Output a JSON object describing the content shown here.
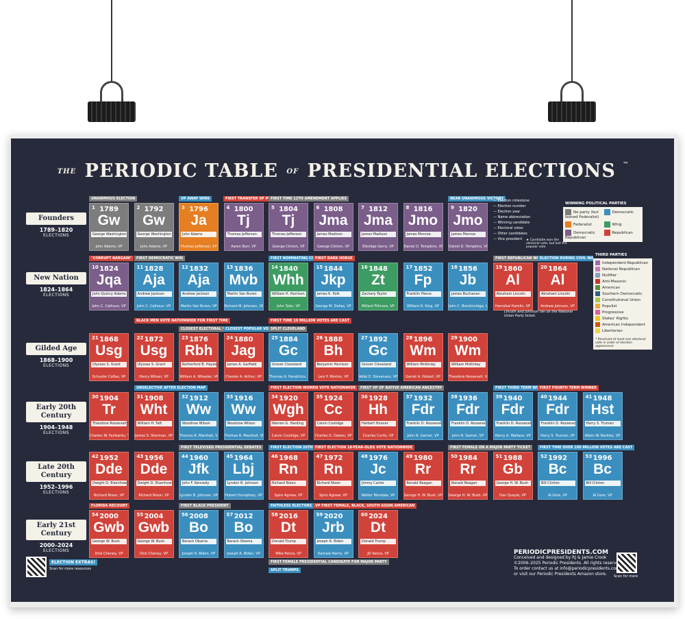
{
  "title": {
    "the": "THE",
    "main1": "PERIODIC TABLE",
    "of": "OF",
    "main2": "PRESIDENTIAL ELECTIONS",
    "tm": "™"
  },
  "colors": {
    "background": "#262a3b",
    "no_party": "#7d7d7d",
    "federalist": "#e67e22",
    "dem_rep": "#7b5e8a",
    "whig": "#3d9c62",
    "democratic": "#3b8fbf",
    "republican": "#d1433a"
  },
  "eras": [
    {
      "name": "Founders",
      "years": "1789–1820",
      "label": "ELECTIONS"
    },
    {
      "name": "New Nation",
      "years": "1824–1864",
      "label": "ELECTIONS"
    },
    {
      "name": "Gilded Age",
      "years": "1868–1900",
      "label": "ELECTIONS"
    },
    {
      "name": "Early 20th Century",
      "years": "1904–1948",
      "label": "ELECTIONS"
    },
    {
      "name": "Late 20th Century",
      "years": "1952–1996",
      "label": "ELECTIONS"
    },
    {
      "name": "Early 21st Century",
      "years": "2000–2024",
      "label": "ELECTIONS"
    }
  ],
  "elections": [
    {
      "n": "1",
      "yr": "1789",
      "ab": "Gw",
      "winner": "George Washington",
      "vp": "John Adams, VP",
      "party": "no_party"
    },
    {
      "n": "2",
      "yr": "1792",
      "ab": "Gw",
      "winner": "George Washington",
      "vp": "John Adams, VP",
      "party": "no_party"
    },
    {
      "n": "3",
      "yr": "1796",
      "ab": "Ja",
      "winner": "John Adams",
      "vp": "Thomas Jefferson, VP",
      "party": "federalist"
    },
    {
      "n": "4",
      "yr": "1800",
      "ab": "Tj",
      "winner": "Thomas Jefferson",
      "vp": "Aaron Burr, VP",
      "party": "dem_rep"
    },
    {
      "n": "5",
      "yr": "1804",
      "ab": "Tj",
      "winner": "Thomas Jefferson",
      "vp": "George Clinton, VP",
      "party": "dem_rep"
    },
    {
      "n": "6",
      "yr": "1808",
      "ab": "Jma",
      "winner": "James Madison",
      "vp": "George Clinton, VP",
      "party": "dem_rep"
    },
    {
      "n": "7",
      "yr": "1812",
      "ab": "Jma",
      "winner": "James Madison",
      "vp": "Elbridge Gerry, VP",
      "party": "dem_rep"
    },
    {
      "n": "8",
      "yr": "1816",
      "ab": "Jmo",
      "winner": "James Monroe",
      "vp": "Daniel D. Tompkins, VP",
      "party": "dem_rep"
    },
    {
      "n": "9",
      "yr": "1820",
      "ab": "Jmo",
      "winner": "James Monroe",
      "vp": "Daniel D. Tompkins, VP",
      "party": "dem_rep"
    },
    {
      "n": "10",
      "yr": "1824",
      "ab": "Jqa",
      "winner": "John Quincy Adams",
      "vp": "John C. Calhoun, VP",
      "party": "dem_rep"
    },
    {
      "n": "11",
      "yr": "1828",
      "ab": "Aja",
      "winner": "Andrew Jackson",
      "vp": "John C. Calhoun, VP",
      "party": "democratic"
    },
    {
      "n": "12",
      "yr": "1832",
      "ab": "Aja",
      "winner": "Andrew Jackson",
      "vp": "Martin Van Buren, VP",
      "party": "democratic"
    },
    {
      "n": "13",
      "yr": "1836",
      "ab": "Mvb",
      "winner": "Martin Van Buren",
      "vp": "Richard M. Johnson, VP",
      "party": "democratic"
    },
    {
      "n": "14",
      "yr": "1840",
      "ab": "Whh",
      "winner": "William H. Harrison",
      "vp": "John Tyler, VP",
      "party": "whig"
    },
    {
      "n": "15",
      "yr": "1844",
      "ab": "Jkp",
      "winner": "James K. Polk",
      "vp": "George M. Dallas, VP",
      "party": "democratic"
    },
    {
      "n": "16",
      "yr": "1848",
      "ab": "Zt",
      "winner": "Zachary Taylor",
      "vp": "Millard Fillmore, VP",
      "party": "whig"
    },
    {
      "n": "17",
      "yr": "1852",
      "ab": "Fp",
      "winner": "Franklin Pierce",
      "vp": "William R. King, VP",
      "party": "democratic"
    },
    {
      "n": "18",
      "yr": "1856",
      "ab": "Jb",
      "winner": "James Buchanan",
      "vp": "John C. Breckinridge, VP",
      "party": "democratic"
    },
    {
      "n": "19",
      "yr": "1860",
      "ab": "Al",
      "winner": "Abraham Lincoln",
      "vp": "Hannibal Hamlin, VP",
      "party": "republican"
    },
    {
      "n": "20",
      "yr": "1864",
      "ab": "Al",
      "winner": "Abraham Lincoln",
      "vp": "Andrew Johnson, VP",
      "party": "republican"
    },
    {
      "n": "21",
      "yr": "1868",
      "ab": "Usg",
      "winner": "Ulysses S. Grant",
      "vp": "Schuyler Colfax, VP",
      "party": "republican"
    },
    {
      "n": "22",
      "yr": "1872",
      "ab": "Usg",
      "winner": "Ulysses S. Grant",
      "vp": "Henry Wilson, VP",
      "party": "republican"
    },
    {
      "n": "23",
      "yr": "1876",
      "ab": "Rbh",
      "winner": "Rutherford B. Hayes",
      "vp": "William A. Wheeler, VP",
      "party": "republican"
    },
    {
      "n": "24",
      "yr": "1880",
      "ab": "Jag",
      "winner": "James A. Garfield",
      "vp": "Chester A. Arthur, VP",
      "party": "republican"
    },
    {
      "n": "25",
      "yr": "1884",
      "ab": "Gc",
      "winner": "Grover Cleveland",
      "vp": "Thomas A. Hendricks, VP",
      "party": "democratic"
    },
    {
      "n": "26",
      "yr": "1888",
      "ab": "Bh",
      "winner": "Benjamin Harrison",
      "vp": "Levi P. Morton, VP",
      "party": "republican"
    },
    {
      "n": "27",
      "yr": "1892",
      "ab": "Gc",
      "winner": "Grover Cleveland",
      "vp": "Adlai E. Stevenson, VP",
      "party": "democratic"
    },
    {
      "n": "28",
      "yr": "1896",
      "ab": "Wm",
      "winner": "William McKinley",
      "vp": "Garret A. Hobart, VP",
      "party": "republican"
    },
    {
      "n": "29",
      "yr": "1900",
      "ab": "Wm",
      "winner": "William McKinley",
      "vp": "Theodore Roosevelt, VP",
      "party": "republican"
    },
    {
      "n": "30",
      "yr": "1904",
      "ab": "Tr",
      "winner": "Theodore Roosevelt",
      "vp": "Charles W. Fairbanks, VP",
      "party": "republican"
    },
    {
      "n": "31",
      "yr": "1908",
      "ab": "Wht",
      "winner": "William H. Taft",
      "vp": "James S. Sherman, VP",
      "party": "republican"
    },
    {
      "n": "32",
      "yr": "1912",
      "ab": "Ww",
      "winner": "Woodrow Wilson",
      "vp": "Thomas R. Marshall, VP",
      "party": "democratic"
    },
    {
      "n": "33",
      "yr": "1916",
      "ab": "Ww",
      "winner": "Woodrow Wilson",
      "vp": "Thomas R. Marshall, VP",
      "party": "democratic"
    },
    {
      "n": "34",
      "yr": "1920",
      "ab": "Wgh",
      "winner": "Warren G. Harding",
      "vp": "Calvin Coolidge, VP",
      "party": "republican"
    },
    {
      "n": "35",
      "yr": "1924",
      "ab": "Cc",
      "winner": "Calvin Coolidge",
      "vp": "Charles G. Dawes, VP",
      "party": "republican"
    },
    {
      "n": "36",
      "yr": "1928",
      "ab": "Hh",
      "winner": "Herbert Hoover",
      "vp": "Charles Curtis, VP",
      "party": "republican"
    },
    {
      "n": "37",
      "yr": "1932",
      "ab": "Fdr",
      "winner": "Franklin D. Roosevelt",
      "vp": "John N. Garner, VP",
      "party": "democratic"
    },
    {
      "n": "38",
      "yr": "1936",
      "ab": "Fdr",
      "winner": "Franklin D. Roosevelt",
      "vp": "John N. Garner, VP",
      "party": "democratic"
    },
    {
      "n": "39",
      "yr": "1940",
      "ab": "Fdr",
      "winner": "Franklin D. Roosevelt",
      "vp": "Henry A. Wallace, VP",
      "party": "democratic"
    },
    {
      "n": "40",
      "yr": "1944",
      "ab": "Fdr",
      "winner": "Franklin D. Roosevelt",
      "vp": "Harry S. Truman, VP",
      "party": "democratic"
    },
    {
      "n": "41",
      "yr": "1948",
      "ab": "Hst",
      "winner": "Harry S. Truman",
      "vp": "Alben W. Barkley, VP",
      "party": "democratic"
    },
    {
      "n": "42",
      "yr": "1952",
      "ab": "Dde",
      "winner": "Dwight D. Eisenhower",
      "vp": "Richard Nixon, VP",
      "party": "republican"
    },
    {
      "n": "43",
      "yr": "1956",
      "ab": "Dde",
      "winner": "Dwight D. Eisenhower",
      "vp": "Richard Nixon, VP",
      "party": "republican"
    },
    {
      "n": "44",
      "yr": "1960",
      "ab": "Jfk",
      "winner": "John F. Kennedy",
      "vp": "Lyndon B. Johnson, VP",
      "party": "democratic"
    },
    {
      "n": "45",
      "yr": "1964",
      "ab": "Lbj",
      "winner": "Lyndon B. Johnson",
      "vp": "Hubert Humphrey, VP",
      "party": "democratic"
    },
    {
      "n": "46",
      "yr": "1968",
      "ab": "Rn",
      "winner": "Richard Nixon",
      "vp": "Spiro Agnew, VP",
      "party": "republican"
    },
    {
      "n": "47",
      "yr": "1972",
      "ab": "Rn",
      "winner": "Richard Nixon",
      "vp": "Spiro Agnew, VP",
      "party": "republican"
    },
    {
      "n": "48",
      "yr": "1976",
      "ab": "Jc",
      "winner": "Jimmy Carter",
      "vp": "Walter Mondale, VP",
      "party": "democratic"
    },
    {
      "n": "49",
      "yr": "1980",
      "ab": "Rr",
      "winner": "Ronald Reagan",
      "vp": "George H. W. Bush, VP",
      "party": "republican"
    },
    {
      "n": "50",
      "yr": "1984",
      "ab": "Rr",
      "winner": "Ronald Reagan",
      "vp": "George H. W. Bush, VP",
      "party": "republican"
    },
    {
      "n": "51",
      "yr": "1988",
      "ab": "Gb",
      "winner": "George H. W. Bush",
      "vp": "Dan Quayle, VP",
      "party": "republican"
    },
    {
      "n": "52",
      "yr": "1992",
      "ab": "Bc",
      "winner": "Bill Clinton",
      "vp": "Al Gore, VP",
      "party": "democratic"
    },
    {
      "n": "53",
      "yr": "1996",
      "ab": "Bc",
      "winner": "Bill Clinton",
      "vp": "Al Gore, VP",
      "party": "democratic"
    },
    {
      "n": "54",
      "yr": "2000",
      "ab": "Gwb",
      "winner": "George W. Bush",
      "vp": "Dick Cheney, VP",
      "party": "republican"
    },
    {
      "n": "55",
      "yr": "2004",
      "ab": "Gwb",
      "winner": "George W. Bush",
      "vp": "Dick Cheney, VP",
      "party": "republican"
    },
    {
      "n": "56",
      "yr": "2008",
      "ab": "Bo",
      "winner": "Barack Obama",
      "vp": "Joseph R. Biden, VP",
      "party": "democratic"
    },
    {
      "n": "57",
      "yr": "2012",
      "ab": "Bo",
      "winner": "Barack Obama",
      "vp": "Joseph R. Biden, VP",
      "party": "democratic"
    },
    {
      "n": "58",
      "yr": "2016",
      "ab": "Dt",
      "winner": "Donald Trump",
      "vp": "Mike Pence, VP",
      "party": "republican"
    },
    {
      "n": "59",
      "yr": "2020",
      "ab": "Jrb",
      "winner": "Joseph R. Biden",
      "vp": "Kamala Harris, VP",
      "party": "democratic"
    },
    {
      "n": "60",
      "yr": "2024",
      "ab": "Dt",
      "winner": "Donald Trump",
      "vp": "JD Vance, VP",
      "party": "republican"
    }
  ],
  "notes": [
    {
      "text": "UNANIMOUS ELECTION"
    },
    {
      "text": "VP AWAY WINS"
    },
    {
      "text": "FIRST TRANSFER OF POWER"
    },
    {
      "text": "FIRST TIME 12TH AMENDMENT APPLIES"
    },
    {
      "text": "NEAR UNANIMOUS VICTORY"
    },
    {
      "text": "\"CORRUPT BARGAIN\""
    },
    {
      "text": "FIRST DEMOCRATIC WIN"
    },
    {
      "text": "FIRST NOMINATING CONVENTION"
    },
    {
      "text": "FIRST DARK HORSE"
    },
    {
      "text": "FIRST REPUBLICAN WIN"
    },
    {
      "text": "ELECTION DURING CIVIL WAR"
    },
    {
      "text": "BLACK MEN VOTE NATIONWIDE FOR FIRST TIME"
    },
    {
      "text": "CLOSEST ELECTORAL VOTE"
    },
    {
      "text": "CLOSEST POPULAR VOTE"
    },
    {
      "text": "FIRST TIME 10 MILLION VOTES ARE CAST"
    },
    {
      "text": "SPLIT CLEVELAND"
    },
    {
      "text": "UNSELECTIVE AFTER ELECTION MAP"
    },
    {
      "text": "FIRST ELECTION WOMEN VOTE NATIONWIDE"
    },
    {
      "text": "FIRST VP OF NATIVE AMERICAN ANCESTRY"
    },
    {
      "text": "FIRST THIRD TERM WINNER"
    },
    {
      "text": "FIRST FOURTH TERM WINNER"
    },
    {
      "text": "FIRST TELEVISED PRESIDENTIAL DEBATES"
    },
    {
      "text": "FIRST ELECTION 26TH AMENDMENT APPLIES"
    },
    {
      "text": "FIRST ELECTION 18-YEAR-OLDS VOTE NATIONWIDE"
    },
    {
      "text": "FIRST FEMALE ON A MAJOR PARTY TICKET"
    },
    {
      "text": "FIRST TIME OVER 100 MILLION VOTES ARE CAST"
    },
    {
      "text": "FLORIDA RECOUNT"
    },
    {
      "text": "FIRST BLACK PRESIDENT"
    },
    {
      "text": "FAITHLESS ELECTORS"
    },
    {
      "text": "VP FIRST FEMALE, BLACK, SOUTH ASIAN AMERICAN"
    },
    {
      "text": "FIRST FEMALE PRESIDENTIAL CANDIDATE FOR MAJOR PARTY"
    },
    {
      "text": "SPLIT TRUMPS"
    }
  ],
  "key": {
    "labels": [
      "Election milestone",
      "Election number",
      "Election year",
      "Name abbreviation",
      "Winning candidate",
      "Electoral votes",
      "Other candidates",
      "Vice president"
    ],
    "note": "Candidate won the electoral vote, but lost the popular vote"
  },
  "winning_parties": {
    "title": "WINNING POLITICAL PARTIES",
    "items": [
      {
        "label": "No party (but leaned Federalist)",
        "color": "#7d7d7d"
      },
      {
        "label": "Democratic",
        "color": "#3b8fbf"
      },
      {
        "label": "Federalist",
        "color": "#e67e22"
      },
      {
        "label": "Whig",
        "color": "#3d9c62"
      },
      {
        "label": "Democratic Republican",
        "color": "#7b5e8a"
      },
      {
        "label": "Republican",
        "color": "#d1433a"
      }
    ]
  },
  "third_parties": {
    "title": "THIRD PARTIES",
    "items": [
      {
        "label": "Independent-Republican",
        "color": "#9d6bb0"
      },
      {
        "label": "National Republican",
        "color": "#c97fb0"
      },
      {
        "label": "Nullifier",
        "color": "#8aa0c4"
      },
      {
        "label": "Anti-Masonic",
        "color": "#c0392b"
      },
      {
        "label": "American",
        "color": "#5a8f3c"
      },
      {
        "label": "Southern Democratic",
        "color": "#2e5f8a"
      },
      {
        "label": "Constitutional Union",
        "color": "#a3c94a"
      },
      {
        "label": "Populist",
        "color": "#e5a93b"
      },
      {
        "label": "Progressive",
        "color": "#e25c9b"
      },
      {
        "label": "States' Rights",
        "color": "#f0c419"
      },
      {
        "label": "American Independent",
        "color": "#d35400"
      },
      {
        "label": "Libertarian",
        "color": "#f1d24c"
      }
    ],
    "note": "* Received at least one electoral vote in order of election appearance"
  },
  "lincoln_note": "Lincoln and Johnson ran on the National Union Party ticket.",
  "brand": {
    "name": "PERIODICPRESIDENTS.COM",
    "line1": "Conceived and designed by RJ & Jamie Crook",
    "line2": "©2006–2025 Periodic Presidents. All rights reserved.",
    "line3": "To order contact us at info@periodicpresidents.com",
    "line4": "or visit our Periodic Presidents Amazon store.",
    "scan": "Scan for more"
  },
  "extras": {
    "title": "ELECTION EXTRAS!",
    "sub": "Scan for more resources"
  }
}
